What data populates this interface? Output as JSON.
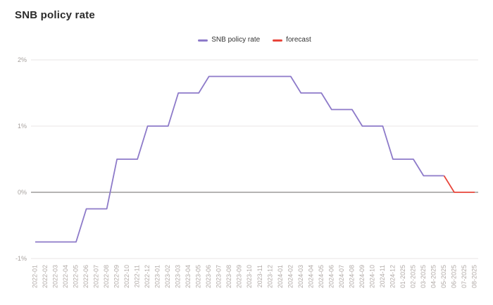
{
  "title": "SNB policy rate",
  "colors": {
    "series_main": "#8d7ac9",
    "series_forecast": "#e8453a",
    "gridline": "#e8e6e5",
    "zero_line": "#6b6967",
    "y_tick_text": "#a7a19e",
    "x_tick_text": "#b1aaa7",
    "title_text": "#2b2b2b"
  },
  "chart_data": {
    "type": "line",
    "title": "SNB policy rate",
    "xlabel": "",
    "ylabel": "",
    "ylim": [
      -1,
      2
    ],
    "grid": true,
    "legend_position": "top-center",
    "x_label_rotation": -90,
    "yticks": [
      {
        "value": -1,
        "label": "-1%"
      },
      {
        "value": 0,
        "label": "0%"
      },
      {
        "value": 1,
        "label": "1%"
      },
      {
        "value": 2,
        "label": "2%"
      }
    ],
    "categories": [
      "2022-01",
      "2022-02",
      "2022-03",
      "2022-04",
      "2022-05",
      "2022-06",
      "2022-07",
      "2022-08",
      "2022-09",
      "2022-10",
      "2022-11",
      "2022-12",
      "2023-01",
      "2023-02",
      "2023-03",
      "2023-04",
      "2023-05",
      "2023-06",
      "2023-07",
      "2023-08",
      "2023-09",
      "2023-10",
      "2023-11",
      "2023-12",
      "2024-01",
      "2024-02",
      "2024-03",
      "2024-04",
      "2024-05",
      "2024-06",
      "2024-07",
      "2024-08",
      "2024-09",
      "2024-10",
      "2024-11",
      "2024-12",
      "01-2025",
      "02-2025",
      "03-2025",
      "04-2025",
      "05-2025",
      "06-2025",
      "07-2025",
      "08-2025"
    ],
    "series": [
      {
        "name": "SNB policy rate",
        "color": "#8d7ac9",
        "values": [
          -0.75,
          -0.75,
          -0.75,
          -0.75,
          -0.75,
          -0.25,
          -0.25,
          -0.25,
          0.5,
          0.5,
          0.5,
          1,
          1,
          1,
          1.5,
          1.5,
          1.5,
          1.75,
          1.75,
          1.75,
          1.75,
          1.75,
          1.75,
          1.75,
          1.75,
          1.75,
          1.5,
          1.5,
          1.5,
          1.25,
          1.25,
          1.25,
          1,
          1,
          1,
          0.5,
          0.5,
          0.5,
          0.25,
          0.25,
          0.25,
          null,
          null,
          null
        ]
      },
      {
        "name": "forecast",
        "color": "#e8453a",
        "values": [
          null,
          null,
          null,
          null,
          null,
          null,
          null,
          null,
          null,
          null,
          null,
          null,
          null,
          null,
          null,
          null,
          null,
          null,
          null,
          null,
          null,
          null,
          null,
          null,
          null,
          null,
          null,
          null,
          null,
          null,
          null,
          null,
          null,
          null,
          null,
          null,
          null,
          null,
          null,
          null,
          0.25,
          0,
          0,
          0
        ]
      }
    ]
  }
}
